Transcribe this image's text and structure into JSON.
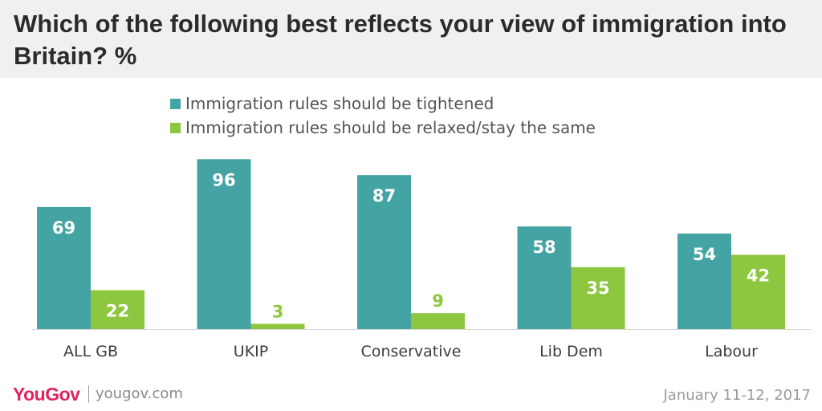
{
  "title": "Which of the following best reflects your view of immigration into Britain? %",
  "colors": {
    "tightened": "#44a3a3",
    "relaxed": "#8dc63f"
  },
  "chart_data": {
    "type": "bar",
    "categories": [
      "ALL GB",
      "UKIP",
      "Conservative",
      "Lib Dem",
      "Labour"
    ],
    "series": [
      {
        "name": "Immigration rules should be tightened",
        "values": [
          69,
          96,
          87,
          58,
          54
        ]
      },
      {
        "name": "Immigration rules should be relaxed/stay the same",
        "values": [
          22,
          3,
          9,
          35,
          42
        ]
      }
    ],
    "title": "Which of the following best reflects your view of immigration into Britain? %",
    "xlabel": "",
    "ylabel": "",
    "ylim": [
      0,
      100
    ],
    "grid": false,
    "legend_position": "top"
  },
  "footer": {
    "brand": "YouGov",
    "website": "yougov.com",
    "date": "January 11-12, 2017"
  }
}
